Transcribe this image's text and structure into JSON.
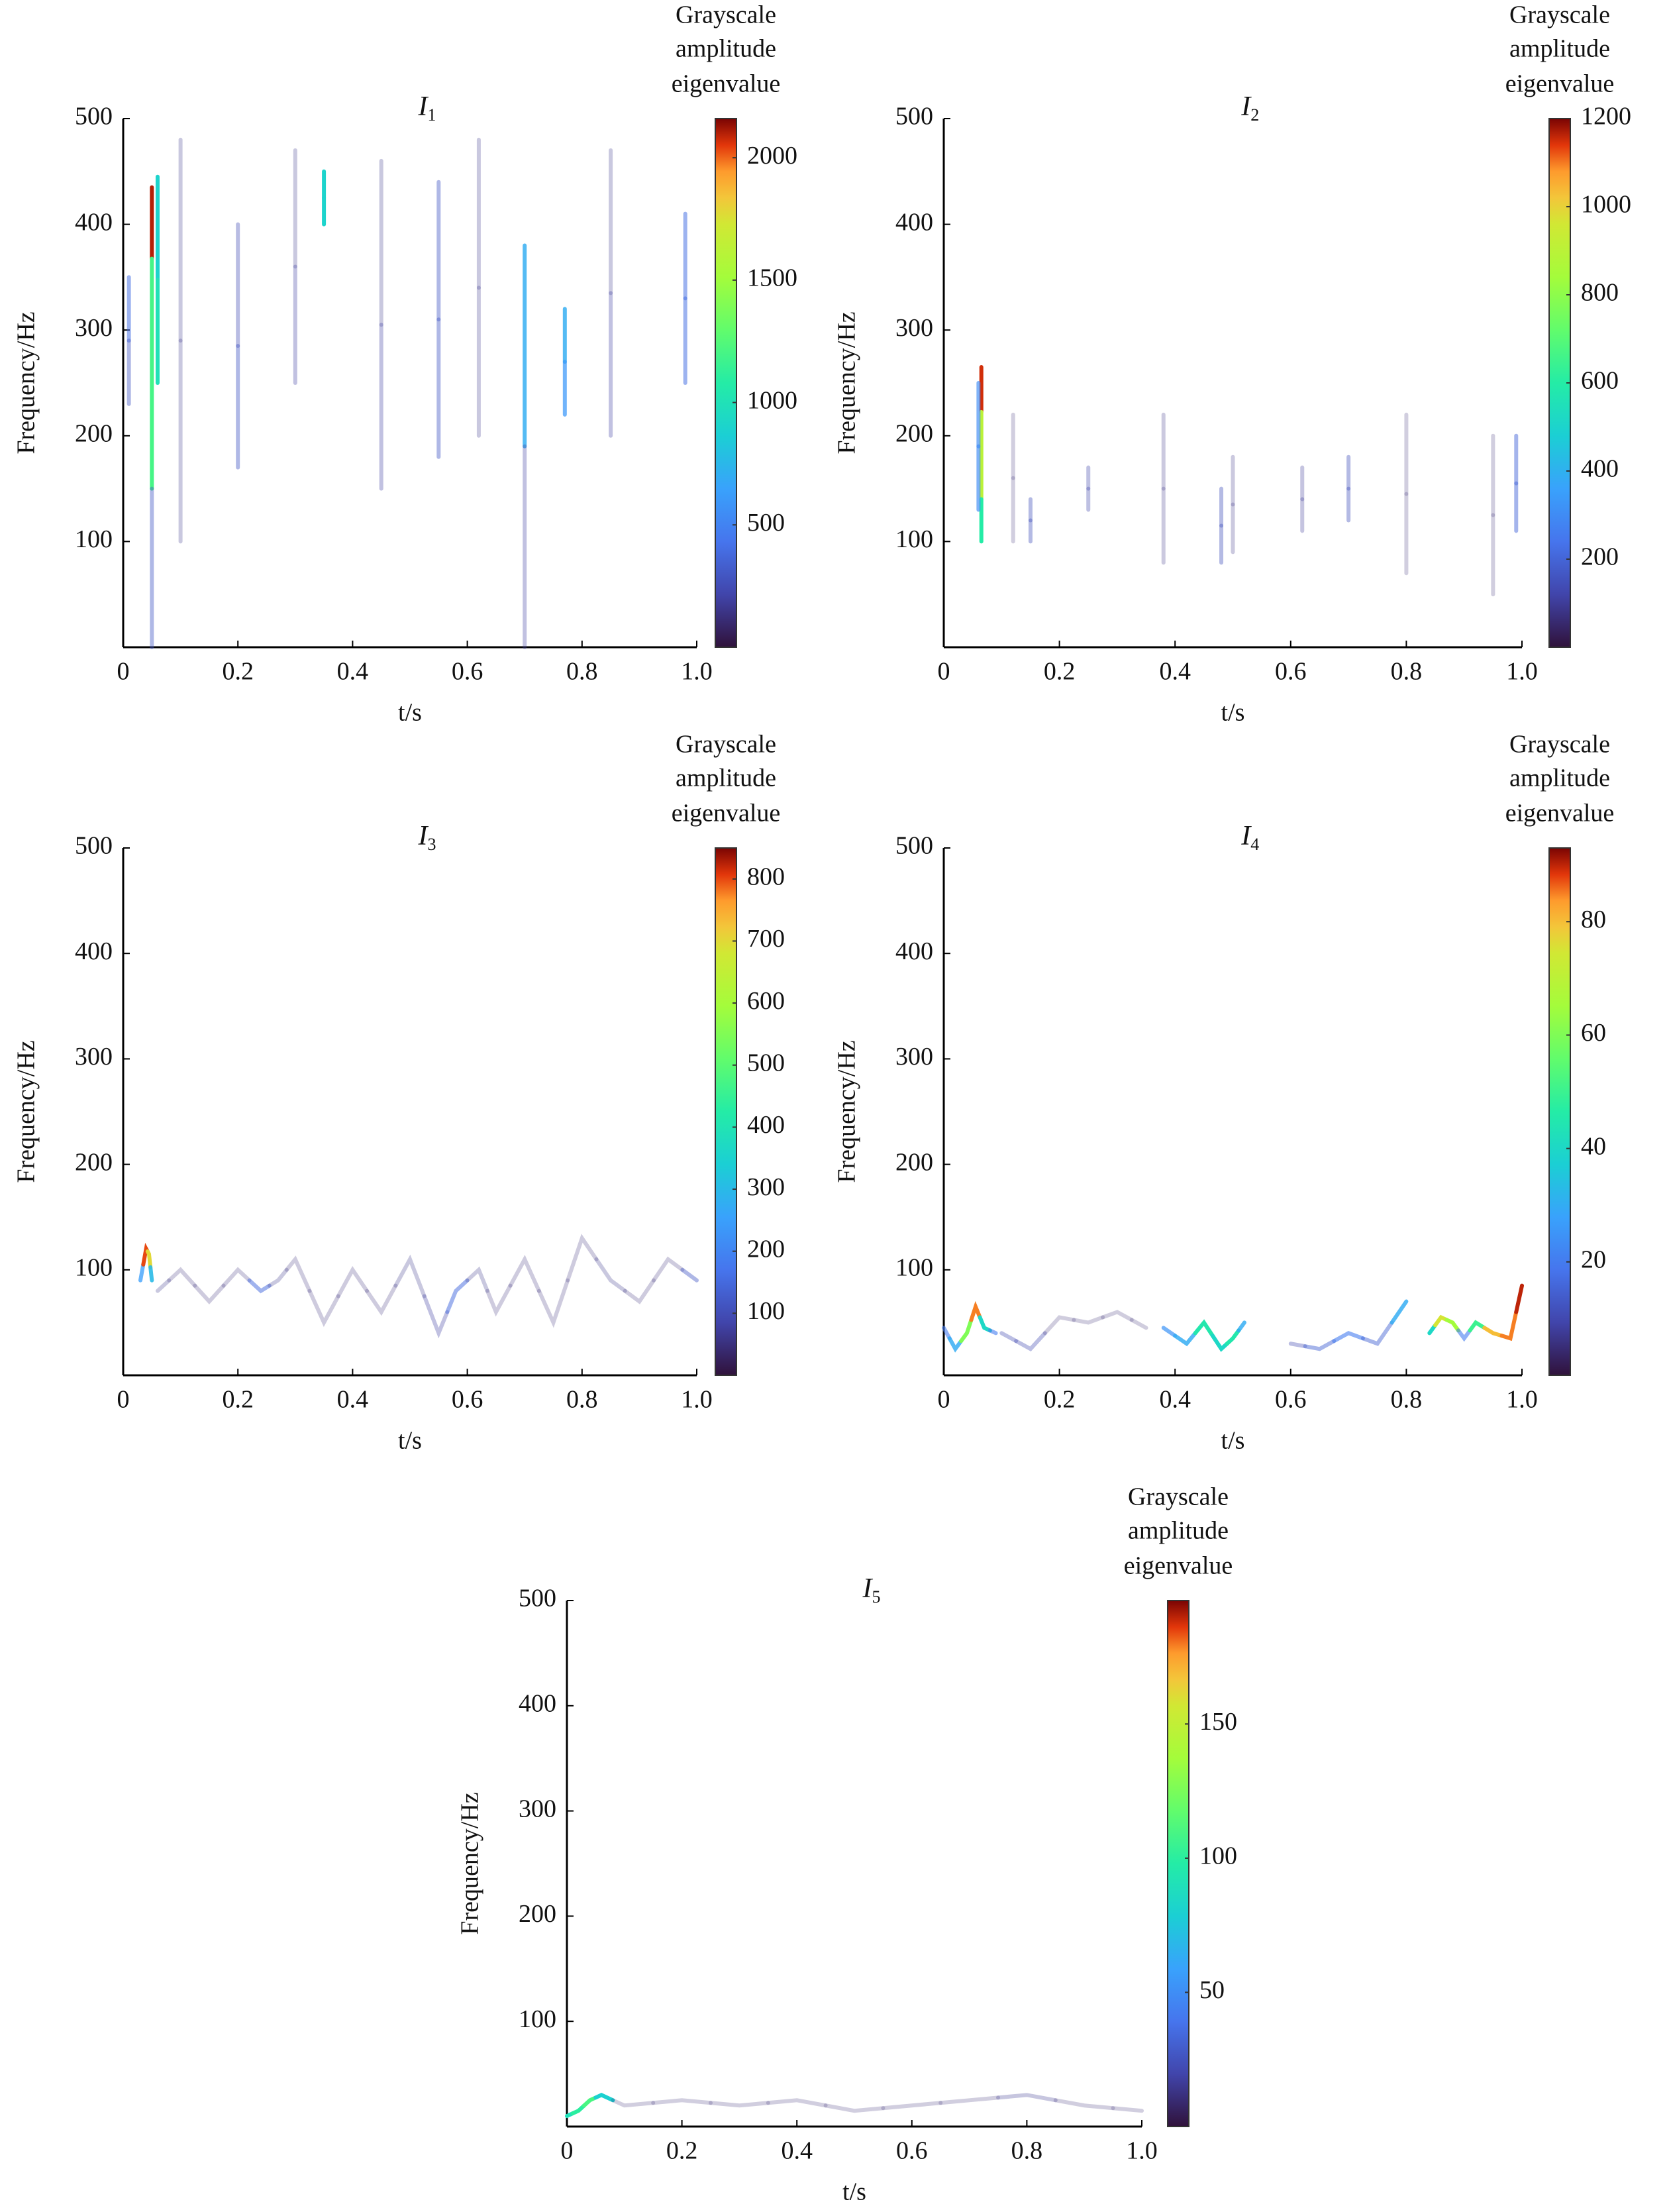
{
  "chart_data": [
    {
      "type": "spectrogram",
      "title": "I",
      "title_subscript": "1",
      "xlabel": "t/s",
      "ylabel": "Frequency/Hz",
      "colorbar_label": [
        "Grayscale",
        "amplitude",
        "eigenvalue"
      ],
      "colormap": "turbo",
      "xlim": [
        0,
        1
      ],
      "xticks": [
        0,
        0.2,
        0.4,
        0.6,
        0.8,
        {
          "value": 1,
          "label": "1.0"
        }
      ],
      "ylim": [
        0,
        500
      ],
      "yticks": [
        100,
        200,
        300,
        400,
        500
      ],
      "clim": [
        0,
        2160
      ],
      "cticks": [
        500,
        1000,
        1500,
        2000
      ],
      "segments": [
        {
          "x": [
            0.05,
            0.05,
            0.05
          ],
          "y": [
            435,
            300,
            0
          ],
          "values": [
            2100,
            1200,
            300
          ]
        },
        {
          "x": [
            0.06,
            0.06
          ],
          "y": [
            445,
            250
          ],
          "values": [
            900,
            1000
          ]
        },
        {
          "x": [
            0.01,
            0.01
          ],
          "y": [
            350,
            230
          ],
          "values": [
            400,
            300
          ]
        },
        {
          "x": [
            0.1,
            0.1
          ],
          "y": [
            480,
            100
          ],
          "values": [
            150,
            150
          ]
        },
        {
          "x": [
            0.2,
            0.2
          ],
          "y": [
            400,
            170
          ],
          "values": [
            250,
            300
          ]
        },
        {
          "x": [
            0.3,
            0.3
          ],
          "y": [
            470,
            250
          ],
          "values": [
            150,
            200
          ]
        },
        {
          "x": [
            0.35,
            0.35
          ],
          "y": [
            450,
            400
          ],
          "values": [
            900,
            900
          ]
        },
        {
          "x": [
            0.45,
            0.45
          ],
          "y": [
            460,
            150
          ],
          "values": [
            150,
            200
          ]
        },
        {
          "x": [
            0.55,
            0.55
          ],
          "y": [
            440,
            180
          ],
          "values": [
            300,
            300
          ]
        },
        {
          "x": [
            0.62,
            0.62
          ],
          "y": [
            480,
            200
          ],
          "values": [
            150,
            150
          ]
        },
        {
          "x": [
            0.7,
            0.7
          ],
          "y": [
            380,
            0
          ],
          "values": [
            700,
            200
          ]
        },
        {
          "x": [
            0.77,
            0.77
          ],
          "y": [
            320,
            220
          ],
          "values": [
            700,
            600
          ]
        },
        {
          "x": [
            0.85,
            0.85
          ],
          "y": [
            470,
            200
          ],
          "values": [
            150,
            200
          ]
        },
        {
          "x": [
            0.98,
            0.98
          ],
          "y": [
            410,
            250
          ],
          "values": [
            400,
            400
          ]
        }
      ]
    },
    {
      "type": "spectrogram",
      "title": "I",
      "title_subscript": "2",
      "xlabel": "t/s",
      "ylabel": "Frequency/Hz",
      "colorbar_label": [
        "Grayscale",
        "amplitude",
        "eigenvalue"
      ],
      "colormap": "turbo",
      "xlim": [
        0,
        1
      ],
      "xticks": [
        0,
        0.2,
        0.4,
        0.6,
        0.8,
        {
          "value": 1,
          "label": "1.0"
        }
      ],
      "ylim": [
        0,
        500
      ],
      "yticks": [
        100,
        200,
        300,
        400,
        500
      ],
      "clim": [
        0,
        1200
      ],
      "cticks": [
        200,
        400,
        600,
        800,
        1000,
        1200
      ],
      "segments": [
        {
          "x": [
            0.065,
            0.065,
            0.065
          ],
          "y": [
            265,
            180,
            100
          ],
          "values": [
            1150,
            900,
            600
          ]
        },
        {
          "x": [
            0.06,
            0.06
          ],
          "y": [
            250,
            130
          ],
          "values": [
            300,
            300
          ]
        },
        {
          "x": [
            0.12,
            0.12
          ],
          "y": [
            220,
            100
          ],
          "values": [
            60,
            60
          ]
        },
        {
          "x": [
            0.15,
            0.15
          ],
          "y": [
            140,
            100
          ],
          "values": [
            150,
            150
          ]
        },
        {
          "x": [
            0.25,
            0.25
          ],
          "y": [
            170,
            130
          ],
          "values": [
            120,
            120
          ]
        },
        {
          "x": [
            0.38,
            0.38
          ],
          "y": [
            220,
            80
          ],
          "values": [
            80,
            80
          ]
        },
        {
          "x": [
            0.48,
            0.48
          ],
          "y": [
            150,
            80
          ],
          "values": [
            150,
            150
          ]
        },
        {
          "x": [
            0.5,
            0.5
          ],
          "y": [
            180,
            90
          ],
          "values": [
            80,
            80
          ]
        },
        {
          "x": [
            0.62,
            0.62
          ],
          "y": [
            170,
            110
          ],
          "values": [
            100,
            100
          ]
        },
        {
          "x": [
            0.7,
            0.7
          ],
          "y": [
            180,
            120
          ],
          "values": [
            150,
            150
          ]
        },
        {
          "x": [
            0.8,
            0.8
          ],
          "y": [
            220,
            70
          ],
          "values": [
            60,
            60
          ]
        },
        {
          "x": [
            0.95,
            0.95
          ],
          "y": [
            200,
            50
          ],
          "values": [
            60,
            60
          ]
        },
        {
          "x": [
            0.99,
            0.99
          ],
          "y": [
            200,
            110
          ],
          "values": [
            200,
            200
          ]
        }
      ]
    },
    {
      "type": "spectrogram",
      "title": "I",
      "title_subscript": "3",
      "xlabel": "t/s",
      "ylabel": "Frequency/Hz",
      "colorbar_label": [
        "Grayscale",
        "amplitude",
        "eigenvalue"
      ],
      "colormap": "turbo",
      "xlim": [
        0,
        1
      ],
      "xticks": [
        0,
        0.2,
        0.4,
        0.6,
        0.8,
        {
          "value": 1,
          "label": "1.0"
        }
      ],
      "ylim": [
        0,
        500
      ],
      "yticks": [
        100,
        200,
        300,
        400,
        500
      ],
      "clim": [
        0,
        850
      ],
      "cticks": [
        100,
        200,
        300,
        400,
        500,
        600,
        700,
        800
      ],
      "segments": [
        {
          "x": [
            0.03,
            0.04,
            0.045,
            0.05
          ],
          "y": [
            90,
            120,
            115,
            90
          ],
          "values": [
            250,
            800,
            700,
            300
          ]
        },
        {
          "x": [
            0.06,
            0.1,
            0.15,
            0.2,
            0.24,
            0.27,
            0.3,
            0.35,
            0.4,
            0.45,
            0.5,
            0.55,
            0.58,
            0.62,
            0.65,
            0.7,
            0.75,
            0.8,
            0.85,
            0.9,
            0.95,
            1.0
          ],
          "y": [
            80,
            100,
            70,
            100,
            80,
            90,
            110,
            50,
            100,
            60,
            110,
            40,
            80,
            100,
            60,
            110,
            50,
            130,
            90,
            70,
            110,
            90
          ],
          "values": [
            60,
            50,
            50,
            50,
            150,
            60,
            50,
            50,
            50,
            50,
            60,
            80,
            150,
            60,
            50,
            50,
            50,
            50,
            60,
            50,
            50,
            120
          ]
        }
      ]
    },
    {
      "type": "spectrogram",
      "title": "I",
      "title_subscript": "4",
      "xlabel": "t/s",
      "ylabel": "Frequency/Hz",
      "colorbar_label": [
        "Grayscale",
        "amplitude",
        "eigenvalue"
      ],
      "colormap": "turbo",
      "xlim": [
        0,
        1
      ],
      "xticks": [
        0,
        0.2,
        0.4,
        0.6,
        0.8,
        {
          "value": 1,
          "label": "1.0"
        }
      ],
      "ylim": [
        0,
        500
      ],
      "yticks": [
        100,
        200,
        300,
        400,
        500
      ],
      "clim": [
        0,
        93
      ],
      "cticks": [
        20,
        40,
        60,
        80
      ],
      "segments": [
        {
          "x": [
            0,
            0.02,
            0.04,
            0.055,
            0.07,
            0.09
          ],
          "y": [
            45,
            25,
            40,
            65,
            45,
            40
          ],
          "values": [
            20,
            30,
            60,
            85,
            40,
            20
          ]
        },
        {
          "x": [
            0.1,
            0.15,
            0.2,
            0.25,
            0.3,
            0.35
          ],
          "y": [
            40,
            25,
            55,
            50,
            60,
            45
          ],
          "values": [
            10,
            10,
            5,
            5,
            5,
            5
          ]
        },
        {
          "x": [
            0.38,
            0.42,
            0.45,
            0.48,
            0.5,
            0.52
          ],
          "y": [
            45,
            30,
            50,
            25,
            35,
            50
          ],
          "values": [
            25,
            30,
            45,
            40,
            45,
            30
          ]
        },
        {
          "x": [
            0.6,
            0.65,
            0.7,
            0.75,
            0.8
          ],
          "y": [
            30,
            25,
            40,
            30,
            70
          ],
          "values": [
            10,
            15,
            20,
            15,
            30
          ]
        },
        {
          "x": [
            0.84,
            0.86,
            0.88,
            0.9,
            0.92,
            0.95,
            0.98,
            1.0
          ],
          "y": [
            40,
            55,
            50,
            35,
            50,
            40,
            35,
            85
          ],
          "values": [
            40,
            75,
            65,
            20,
            50,
            80,
            85,
            90
          ]
        }
      ]
    },
    {
      "type": "spectrogram",
      "title": "I",
      "title_subscript": "5",
      "xlabel": "t/s",
      "ylabel": "Frequency/Hz",
      "colorbar_label": [
        "Grayscale",
        "amplitude",
        "eigenvalue"
      ],
      "colormap": "turbo",
      "xlim": [
        0,
        1
      ],
      "xticks": [
        0,
        0.2,
        0.4,
        0.6,
        0.8,
        {
          "value": 1,
          "label": "1.0"
        }
      ],
      "ylim": [
        0,
        500
      ],
      "yticks": [
        100,
        200,
        300,
        400,
        500
      ],
      "clim": [
        0,
        196
      ],
      "cticks": [
        50,
        100,
        150
      ],
      "segments": [
        {
          "x": [
            0,
            0.02,
            0.04,
            0.06,
            0.1,
            0.2,
            0.3,
            0.4,
            0.5,
            0.6,
            0.7,
            0.8,
            0.9,
            1.0
          ],
          "y": [
            10,
            15,
            25,
            30,
            20,
            25,
            20,
            25,
            15,
            20,
            25,
            30,
            20,
            15
          ],
          "values": [
            90,
            100,
            110,
            80,
            10,
            10,
            10,
            10,
            10,
            10,
            10,
            15,
            10,
            10
          ]
        }
      ]
    }
  ]
}
